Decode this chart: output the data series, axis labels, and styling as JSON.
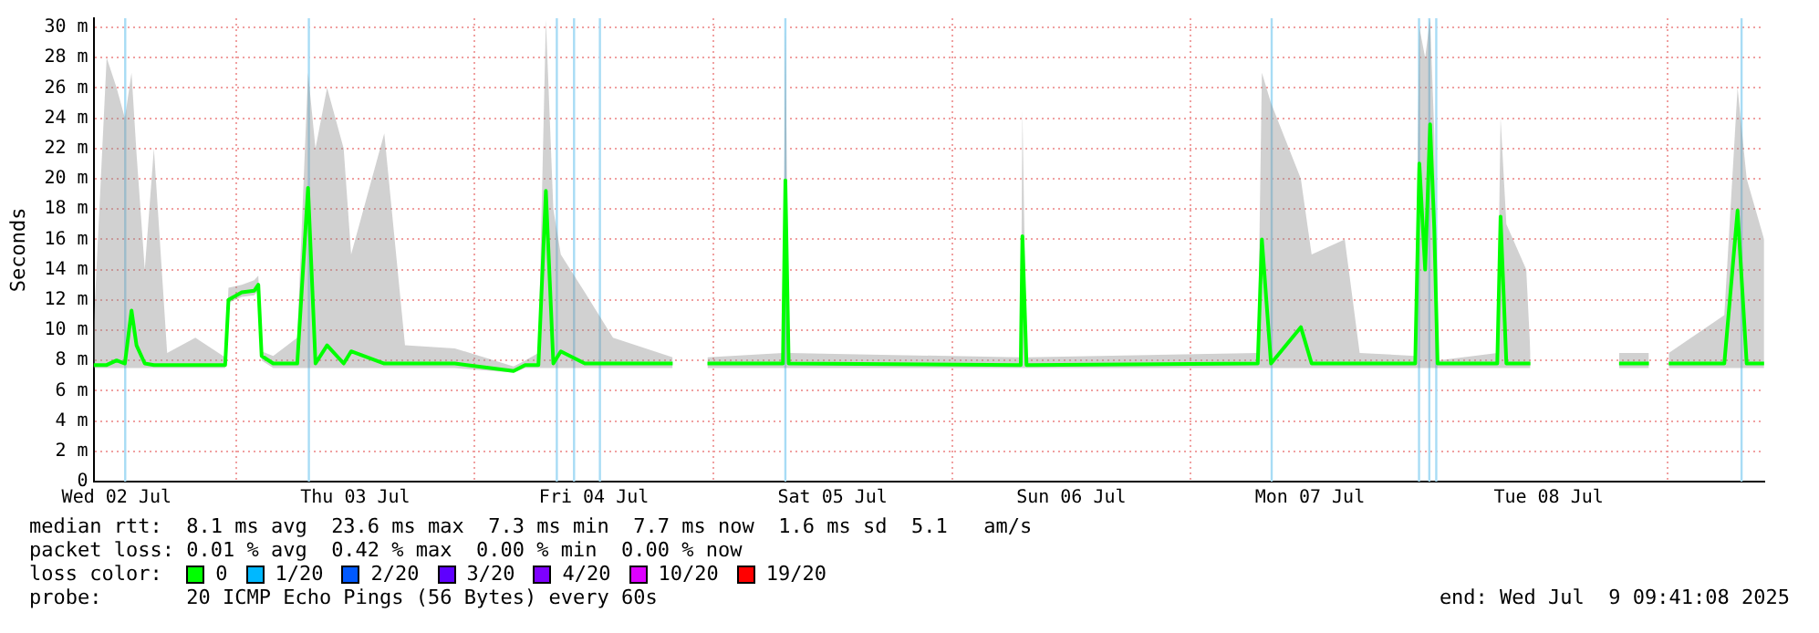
{
  "chart_data": {
    "type": "line",
    "ylabel": "Seconds",
    "legend_title": "loss color:",
    "legend": "bottom",
    "grid": true,
    "xlim": [
      "2025-07-02T09:41",
      "2025-07-09T09:41"
    ],
    "xticks": [
      {
        "value": "2025-07-02T12:00",
        "label": "Wed 02 Jul"
      },
      {
        "value": "2025-07-03",
        "label": null
      },
      {
        "value": "2025-07-03T12:00",
        "label": "Thu 03 Jul"
      },
      {
        "value": "2025-07-04",
        "label": null
      },
      {
        "value": "2025-07-04T12:00",
        "label": "Fri 04 Jul"
      },
      {
        "value": "2025-07-05",
        "label": null
      },
      {
        "value": "2025-07-05T12:00",
        "label": "Sat 05 Jul"
      },
      {
        "value": "2025-07-06",
        "label": null
      },
      {
        "value": "2025-07-06T12:00",
        "label": "Sun 06 Jul"
      },
      {
        "value": "2025-07-07",
        "label": null
      },
      {
        "value": "2025-07-07T12:00",
        "label": "Mon 07 Jul"
      },
      {
        "value": "2025-07-08",
        "label": null
      },
      {
        "value": "2025-07-08T12:00",
        "label": "Tue 08 Jul"
      },
      {
        "value": "2025-07-09",
        "label": null
      }
    ],
    "ylim": [
      0,
      30.6
    ],
    "yticks": [
      0,
      {
        "value": 2,
        "label": "2 m"
      },
      {
        "value": 4,
        "label": "4 m"
      },
      {
        "value": 6,
        "label": "6 m"
      },
      {
        "value": 8,
        "label": "8 m"
      },
      {
        "value": 10,
        "label": "10 m"
      },
      {
        "value": 12,
        "label": "12 m"
      },
      {
        "value": 14,
        "label": "14 m"
      },
      {
        "value": 16,
        "label": "16 m"
      },
      {
        "value": 18,
        "label": "18 m"
      },
      {
        "value": 20,
        "label": "20 m"
      },
      {
        "value": 22,
        "label": "22 m"
      },
      {
        "value": 24,
        "label": "24 m"
      },
      {
        "value": 26,
        "label": "26 m"
      },
      {
        "value": 28,
        "label": "28 m"
      },
      {
        "value": 30,
        "label": "30 m"
      }
    ],
    "x": [
      "2025-07-02T09:41",
      "2025-07-02T11:00",
      "2025-07-02T12:00",
      "2025-07-02T12:50",
      "2025-07-02T13:30",
      "2025-07-02T14:00",
      "2025-07-02T14:50",
      "2025-07-02T15:45",
      "2025-07-02T17:05",
      "2025-07-02T19:55",
      "2025-07-02T22:55",
      "2025-07-02T23:15",
      "2025-07-03T00:35",
      "2025-07-03T01:50",
      "2025-07-03T02:15",
      "2025-07-03T02:35",
      "2025-07-03T03:45",
      "2025-07-03T06:10",
      "2025-07-03T07:15",
      "2025-07-03T08:00",
      "2025-07-03T09:10",
      "2025-07-03T10:50",
      "2025-07-03T11:35",
      "2025-07-03T14:55",
      "2025-07-03T17:00",
      "2025-07-03T22:00",
      "2025-07-04T03:55",
      "2025-07-04T05:05",
      "2025-07-04T06:25",
      "2025-07-04T07:10",
      "2025-07-04T07:55",
      "2025-07-04T08:40",
      "2025-07-04T11:05",
      "2025-07-04T13:55",
      "2025-07-04T19:55",
      "2025-07-04T21:20",
      "2025-07-04T23:25",
      "2025-07-05T07:00",
      "2025-07-05T07:15",
      "2025-07-05T07:35",
      "2025-07-06T06:55",
      "2025-07-06T07:05",
      "2025-07-06T07:30",
      "2025-07-07T06:45",
      "2025-07-07T07:10",
      "2025-07-07T08:05",
      "2025-07-07T11:05",
      "2025-07-07T12:10",
      "2025-07-07T15:30",
      "2025-07-07T17:00",
      "2025-07-07T22:35",
      "2025-07-07T23:00",
      "2025-07-07T23:35",
      "2025-07-08T00:05",
      "2025-07-08T00:30",
      "2025-07-08T00:50",
      "2025-07-08T06:50",
      "2025-07-08T07:10",
      "2025-07-08T07:45",
      "2025-07-08T09:45",
      "2025-07-08T10:10",
      "2025-07-08T11:05",
      "2025-07-08T19:05",
      "2025-07-08T22:05",
      "2025-07-08T22:25",
      "2025-07-09T00:05",
      "2025-07-09T05:40",
      "2025-07-09T07:00",
      "2025-07-09T07:55",
      "2025-07-09T09:40"
    ],
    "series": [
      {
        "name": "0",
        "color": "#00ff00",
        "values": [
          7.7,
          7.7,
          8.0,
          7.8,
          11.3,
          9.0,
          7.8,
          7.7,
          7.7,
          7.7,
          7.7,
          12.0,
          12.5,
          12.6,
          13.0,
          8.3,
          7.8,
          7.8,
          19.4,
          7.8,
          9.0,
          7.8,
          8.6,
          7.8,
          7.8,
          7.8,
          7.3,
          7.7,
          7.7,
          19.2,
          7.8,
          8.6,
          7.8,
          7.8,
          7.8,
          null,
          7.8,
          7.8,
          19.9,
          7.8,
          7.7,
          16.2,
          7.7,
          7.8,
          16.0,
          7.8,
          10.2,
          7.8,
          7.8,
          7.8,
          7.8,
          21.0,
          14.0,
          23.6,
          16.7,
          7.8,
          7.8,
          17.5,
          7.8,
          7.8,
          7.8,
          null,
          7.8,
          7.8,
          null,
          7.8,
          7.8,
          17.9,
          7.8,
          7.8
        ],
        "lower": [
          7.5,
          7.5,
          7.5,
          7.5,
          7.5,
          7.5,
          7.5,
          7.5,
          7.5,
          7.5,
          7.5,
          11.8,
          12.2,
          12.3,
          12.6,
          8.0,
          7.5,
          7.5,
          7.5,
          7.5,
          7.5,
          7.5,
          7.5,
          7.5,
          7.5,
          7.5,
          7.2,
          7.5,
          7.5,
          7.5,
          7.5,
          7.5,
          7.5,
          7.5,
          7.5,
          null,
          7.5,
          7.5,
          7.5,
          7.5,
          7.5,
          7.5,
          7.5,
          7.5,
          7.5,
          7.5,
          7.5,
          7.5,
          7.5,
          7.5,
          7.5,
          7.5,
          7.5,
          7.5,
          7.5,
          7.5,
          7.5,
          7.5,
          7.5,
          7.5,
          7.5,
          null,
          7.5,
          7.5,
          null,
          7.5,
          7.5,
          7.5,
          7.5,
          7.5
        ],
        "upper": [
          10,
          28,
          26,
          24,
          27,
          21.7,
          14,
          22,
          8.5,
          9.5,
          8.2,
          12.8,
          13,
          13.3,
          13.6,
          8.6,
          8.3,
          9.5,
          27,
          22,
          26,
          22,
          15,
          23,
          9,
          8.8,
          7.6,
          8,
          8.5,
          30.5,
          18,
          15,
          12.5,
          9.5,
          8.2,
          null,
          8.2,
          8.5,
          30,
          8.5,
          8.2,
          24.5,
          8.2,
          8.5,
          27,
          25,
          20,
          15,
          16,
          8.5,
          8.3,
          30,
          28,
          30.6,
          23,
          8,
          8.5,
          24,
          17,
          14,
          8.5,
          null,
          8.5,
          8.5,
          null,
          8.5,
          11,
          26,
          20,
          16
        ]
      },
      {
        "name": "1/20",
        "color": "#00b8ff",
        "values": [
          null,
          null,
          null,
          null,
          null,
          null,
          null,
          null,
          null,
          null,
          null,
          null,
          null,
          null,
          null,
          null,
          null,
          null,
          null,
          null,
          null,
          null,
          null,
          null,
          null,
          null,
          null,
          null,
          null,
          null,
          null,
          null,
          null,
          null,
          null,
          null,
          null,
          null,
          null,
          null,
          null,
          null,
          null,
          null,
          null,
          null,
          null,
          null,
          null,
          null,
          null,
          null,
          null,
          null,
          null,
          null,
          null,
          null,
          null,
          null,
          null,
          null,
          null,
          null,
          null,
          null,
          null,
          null,
          null,
          null
        ]
      },
      {
        "name": "2/20",
        "color": "#0059ff",
        "values": [
          null,
          null,
          null,
          null,
          null,
          null,
          null,
          null,
          null,
          null,
          null,
          null,
          null,
          null,
          null,
          null,
          null,
          null,
          null,
          null,
          null,
          null,
          null,
          null,
          null,
          null,
          null,
          null,
          null,
          null,
          null,
          null,
          null,
          null,
          null,
          null,
          null,
          null,
          null,
          null,
          null,
          null,
          null,
          null,
          null,
          null,
          null,
          null,
          null,
          null,
          null,
          null,
          null,
          null,
          null,
          null,
          null,
          null,
          null,
          null,
          null,
          null,
          null,
          null,
          null,
          null,
          null,
          null,
          null,
          null
        ]
      },
      {
        "name": "3/20",
        "color": "#5e00ff",
        "values": [
          null,
          null,
          null,
          null,
          null,
          null,
          null,
          null,
          null,
          null,
          null,
          null,
          null,
          null,
          null,
          null,
          null,
          null,
          null,
          null,
          null,
          null,
          null,
          null,
          null,
          null,
          null,
          null,
          null,
          null,
          null,
          null,
          null,
          null,
          null,
          null,
          null,
          null,
          null,
          null,
          null,
          null,
          null,
          null,
          null,
          null,
          null,
          null,
          null,
          null,
          null,
          null,
          null,
          null,
          null,
          null,
          null,
          null,
          null,
          null,
          null,
          null,
          null,
          null,
          null,
          null,
          null,
          null,
          null,
          null
        ]
      },
      {
        "name": "4/20",
        "color": "#7e00ff",
        "values": [
          null,
          null,
          null,
          null,
          null,
          null,
          null,
          null,
          null,
          null,
          null,
          null,
          null,
          null,
          null,
          null,
          null,
          null,
          null,
          null,
          null,
          null,
          null,
          null,
          null,
          null,
          null,
          null,
          null,
          null,
          null,
          null,
          null,
          null,
          null,
          null,
          null,
          null,
          null,
          null,
          null,
          null,
          null,
          null,
          null,
          null,
          null,
          null,
          null,
          null,
          null,
          null,
          null,
          null,
          null,
          null,
          null,
          null,
          null,
          null,
          null,
          null,
          null,
          null,
          null,
          null,
          null,
          null,
          null,
          null
        ]
      },
      {
        "name": "10/20",
        "color": "#dd00ff",
        "values": [
          null,
          null,
          null,
          null,
          null,
          null,
          null,
          null,
          null,
          null,
          null,
          null,
          null,
          null,
          null,
          null,
          null,
          null,
          null,
          null,
          null,
          null,
          null,
          null,
          null,
          null,
          null,
          null,
          null,
          null,
          null,
          null,
          null,
          null,
          null,
          null,
          null,
          null,
          null,
          null,
          null,
          null,
          null,
          null,
          null,
          null,
          null,
          null,
          null,
          null,
          null,
          null,
          null,
          null,
          null,
          null,
          null,
          null,
          null,
          null,
          null,
          null,
          null,
          null,
          null,
          null,
          null,
          null,
          null,
          null
        ]
      },
      {
        "name": "19/20",
        "color": "#ff0000",
        "values": [
          null,
          null,
          null,
          null,
          null,
          null,
          null,
          null,
          null,
          null,
          null,
          null,
          null,
          null,
          null,
          null,
          null,
          null,
          null,
          null,
          null,
          null,
          null,
          null,
          null,
          null,
          null,
          null,
          null,
          null,
          null,
          null,
          null,
          null,
          null,
          null,
          null,
          null,
          null,
          null,
          null,
          null,
          null,
          null,
          null,
          null,
          null,
          null,
          null,
          null,
          null,
          null,
          null,
          null,
          null,
          null,
          null,
          null,
          null,
          null,
          null,
          null,
          null,
          null,
          null,
          null,
          null,
          null,
          null,
          null
        ]
      }
    ],
    "ref_lines": [
      {
        "axis": "x",
        "value": "2025-07-02T12:52",
        "color": "#a8dcf5"
      },
      {
        "axis": "x",
        "value": "2025-07-03T07:20",
        "color": "#a8dcf5"
      },
      {
        "axis": "x",
        "value": "2025-07-04T08:16",
        "color": "#a8dcf5"
      },
      {
        "axis": "x",
        "value": "2025-07-04T10:00",
        "color": "#a8dcf5"
      },
      {
        "axis": "x",
        "value": "2025-07-04T12:36",
        "color": "#a8dcf5"
      },
      {
        "axis": "x",
        "value": "2025-07-05T07:15",
        "color": "#a8dcf5"
      },
      {
        "axis": "x",
        "value": "2025-07-07T08:09",
        "color": "#a8dcf5"
      },
      {
        "axis": "x",
        "value": "2025-07-07T22:58",
        "color": "#a8dcf5"
      },
      {
        "axis": "x",
        "value": "2025-07-08T00:00",
        "color": "#a8dcf5"
      },
      {
        "axis": "x",
        "value": "2025-07-08T00:42",
        "color": "#a8dcf5"
      },
      {
        "axis": "x",
        "value": "2025-07-09T07:24",
        "color": "#a8dcf5"
      }
    ],
    "annotations": [
      "median rtt:  8.1 ms avg  23.6 ms max  7.3 ms min  7.7 ms now  1.6 ms sd  5.1   am/s",
      "packet loss: 0.01 % avg  0.42 % max  0.00 % min  0.00 % now",
      "probe:       20 ICMP Echo Pings (56 Bytes) every 60s",
      "end: Wed Jul  9 09:41:08 2025"
    ]
  }
}
